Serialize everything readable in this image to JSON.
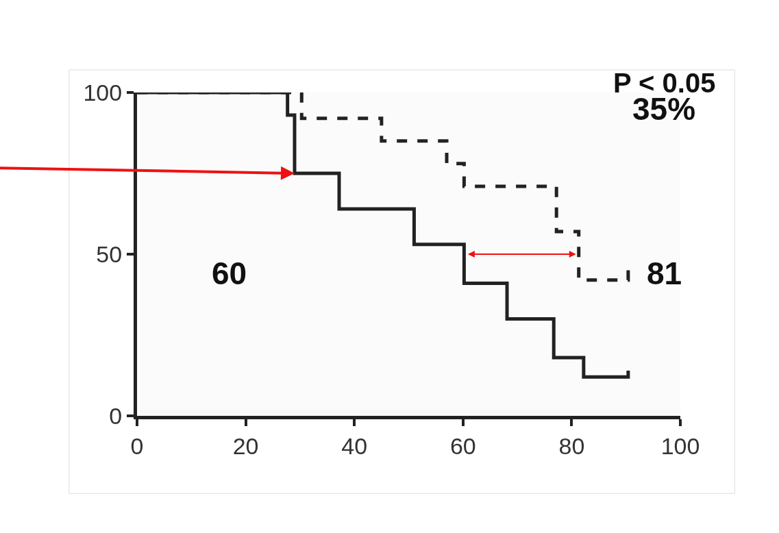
{
  "chart_data": {
    "type": "step",
    "xlim": [
      0,
      100
    ],
    "ylim": [
      0,
      100
    ],
    "xticks": [
      0,
      20,
      40,
      60,
      80,
      100
    ],
    "yticks": [
      0,
      50,
      100
    ],
    "marker": "none",
    "series": [
      {
        "color": "#222222",
        "line_style": "solid",
        "x": [
          0,
          27.7,
          29,
          37.2,
          51,
          60.2,
          68.1,
          76.7,
          82.2,
          90.4,
          90.4
        ],
        "values": [
          100,
          93,
          75,
          64,
          53,
          41,
          30,
          18,
          12,
          12,
          14
        ]
      },
      {
        "color": "#222222",
        "line_style": "dashed",
        "x": [
          0,
          30.3,
          45,
          57,
          60.2,
          77.2,
          81.3,
          90.4,
          90.4
        ],
        "values": [
          100,
          92,
          85,
          78,
          71,
          57,
          42,
          42,
          46
        ]
      }
    ],
    "annotations": [
      "P < 0.05",
      "35%",
      "60",
      "81"
    ]
  }
}
